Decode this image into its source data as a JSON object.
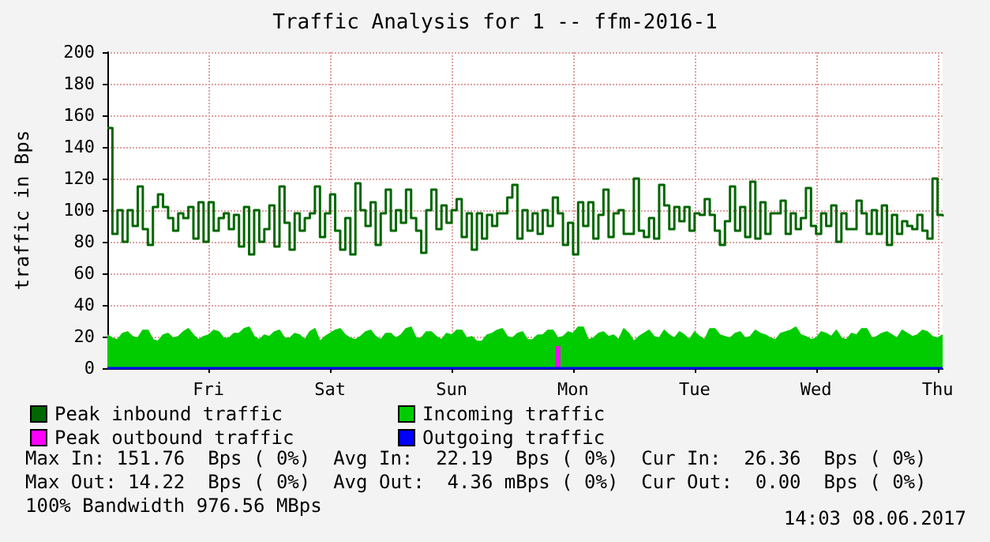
{
  "chart_data": {
    "type": "area",
    "title": "Traffic Analysis for 1 -- ffm-2016-1",
    "ylabel": "traffic in Bps",
    "categories": [
      null,
      null,
      null,
      null,
      null,
      null,
      null,
      null,
      null,
      null,
      null,
      null,
      null,
      null,
      null,
      null,
      null,
      null,
      null,
      null,
      "Fri",
      null,
      null,
      null,
      null,
      null,
      null,
      null,
      null,
      null,
      null,
      null,
      null,
      null,
      null,
      null,
      null,
      null,
      null,
      null,
      null,
      null,
      null,
      null,
      "Sat",
      null,
      null,
      null,
      null,
      null,
      null,
      null,
      null,
      null,
      null,
      null,
      null,
      null,
      null,
      null,
      null,
      null,
      null,
      null,
      null,
      null,
      null,
      null,
      "Sun",
      null,
      null,
      null,
      null,
      null,
      null,
      null,
      null,
      null,
      null,
      null,
      null,
      null,
      null,
      null,
      null,
      null,
      null,
      null,
      null,
      null,
      null,
      null,
      "Mon",
      null,
      null,
      null,
      null,
      null,
      null,
      null,
      null,
      null,
      null,
      null,
      null,
      null,
      null,
      null,
      null,
      null,
      null,
      null,
      null,
      null,
      null,
      null,
      "Tue",
      null,
      null,
      null,
      null,
      null,
      null,
      null,
      null,
      null,
      null,
      null,
      null,
      null,
      null,
      null,
      null,
      null,
      null,
      null,
      null,
      null,
      null,
      null,
      "Wed",
      null,
      null,
      null,
      null,
      null,
      null,
      null,
      null,
      null,
      null,
      null,
      null,
      null,
      null,
      null,
      null,
      null,
      null,
      null,
      null,
      null,
      null,
      null,
      "Thu",
      null
    ],
    "ylim": [
      0,
      200
    ],
    "yticks": [
      0,
      20,
      40,
      60,
      80,
      100,
      120,
      140,
      160,
      180,
      200
    ],
    "grid": true,
    "legend": "bottom",
    "series": [
      {
        "name": "Peak inbound traffic",
        "type": "step",
        "color": "#006600",
        "values": [
          152,
          85,
          100,
          80,
          100,
          90,
          115,
          88,
          78,
          102,
          110,
          102,
          95,
          87,
          98,
          95,
          102,
          82,
          105,
          80,
          105,
          87,
          95,
          98,
          88,
          97,
          77,
          102,
          72,
          100,
          80,
          88,
          103,
          77,
          115,
          92,
          75,
          98,
          87,
          95,
          98,
          115,
          83,
          98,
          110,
          87,
          75,
          95,
          72,
          117,
          100,
          90,
          105,
          78,
          98,
          113,
          87,
          100,
          92,
          113,
          95,
          87,
          73,
          100,
          113,
          88,
          103,
          92,
          100,
          107,
          83,
          98,
          75,
          98,
          82,
          97,
          90,
          98,
          98,
          108,
          116,
          82,
          100,
          87,
          98,
          85,
          100,
          90,
          108,
          98,
          78,
          92,
          72,
          105,
          90,
          105,
          82,
          97,
          113,
          83,
          98,
          100,
          85,
          85,
          120,
          87,
          83,
          95,
          82,
          116,
          103,
          88,
          102,
          93,
          102,
          87,
          98,
          97,
          107,
          97,
          87,
          78,
          93,
          115,
          87,
          102,
          83,
          118,
          82,
          105,
          85,
          98,
          98,
          106,
          85,
          98,
          88,
          95,
          114,
          90,
          85,
          98,
          90,
          103,
          80,
          98,
          88,
          88,
          106,
          98,
          85,
          100,
          85,
          103,
          78,
          97,
          85,
          93,
          90,
          88,
          97,
          87,
          82,
          120,
          97,
          96
        ]
      },
      {
        "name": "Incoming traffic",
        "color": "#00cc00",
        "values": [
          21,
          19,
          18,
          22,
          23,
          20,
          19,
          24,
          24,
          18,
          17,
          21,
          22,
          19,
          20,
          23,
          25,
          21,
          18,
          20,
          21,
          24,
          23,
          19,
          19,
          22,
          22,
          25,
          26,
          20,
          18,
          21,
          20,
          23,
          24,
          19,
          19,
          22,
          21,
          18,
          23,
          25,
          17,
          20,
          22,
          24,
          25,
          21,
          19,
          18,
          20,
          23,
          24,
          20,
          18,
          22,
          22,
          19,
          21,
          25,
          26,
          19,
          19,
          23,
          23,
          20,
          18,
          22,
          21,
          24,
          24,
          19,
          20,
          17,
          17,
          21,
          22,
          24,
          25,
          20,
          19,
          22,
          23,
          18,
          18,
          21,
          21,
          24,
          24,
          19,
          20,
          23,
          22,
          26,
          26,
          18,
          19,
          22,
          23,
          20,
          21,
          18,
          25,
          22,
          17,
          20,
          22,
          24,
          20,
          19,
          24,
          21,
          19,
          23,
          21,
          18,
          23,
          20,
          18,
          25,
          25,
          21,
          20,
          19,
          22,
          23,
          19,
          20,
          24,
          22,
          21,
          19,
          18,
          22,
          23,
          24,
          26,
          21,
          20,
          18,
          19,
          23,
          22,
          20,
          24,
          19,
          18,
          22,
          21,
          25,
          25,
          19,
          20,
          22,
          23,
          21,
          19,
          24,
          22,
          20,
          21,
          24,
          23,
          20,
          19,
          21
        ]
      },
      {
        "name": "Peak outbound traffic",
        "type": "bar",
        "color": "#ff00ff",
        "values": [
          null,
          null,
          null,
          null,
          null,
          null,
          null,
          null,
          null,
          null,
          null,
          null,
          null,
          null,
          null,
          null,
          null,
          null,
          null,
          null,
          null,
          null,
          null,
          null,
          null,
          null,
          null,
          null,
          null,
          null,
          null,
          null,
          null,
          null,
          null,
          null,
          null,
          null,
          null,
          null,
          null,
          null,
          null,
          null,
          null,
          null,
          null,
          null,
          null,
          null,
          null,
          null,
          null,
          null,
          null,
          null,
          null,
          null,
          null,
          null,
          null,
          null,
          null,
          null,
          null,
          null,
          null,
          null,
          null,
          null,
          null,
          null,
          null,
          null,
          null,
          null,
          null,
          null,
          null,
          null,
          null,
          null,
          null,
          null,
          null,
          null,
          null,
          null,
          null,
          14,
          null,
          null,
          null,
          null,
          null,
          null,
          null,
          null,
          null,
          null,
          null,
          null,
          null,
          null,
          null,
          null,
          null,
          null,
          null,
          null,
          null,
          null,
          null,
          null,
          null,
          null,
          null,
          null,
          null,
          null,
          null,
          null,
          null,
          null,
          null,
          null,
          null,
          null,
          null,
          null,
          null,
          null,
          null,
          null,
          null,
          null,
          null,
          null,
          null,
          null,
          null,
          null,
          null,
          null,
          null,
          null,
          null,
          null,
          null,
          null,
          null,
          null,
          null,
          null,
          null,
          null,
          null,
          null,
          null,
          null,
          null,
          null,
          null,
          null,
          null,
          null
        ]
      },
      {
        "name": "Outgoing traffic",
        "type": "line",
        "color": "#0000ff",
        "values": [
          0,
          0,
          0,
          0,
          0,
          0,
          0,
          0,
          0,
          0,
          0,
          0,
          0,
          0,
          0,
          0,
          0,
          0,
          0,
          0,
          0,
          0,
          0,
          0,
          0,
          0,
          0,
          0,
          0,
          0,
          0,
          0,
          0,
          0,
          0,
          0,
          0,
          0,
          0,
          0,
          0,
          0,
          0,
          0,
          0,
          0,
          0,
          0,
          0,
          0,
          0,
          0,
          0,
          0,
          0,
          0,
          0,
          0,
          0,
          0,
          0,
          0,
          0,
          0,
          0,
          0,
          0,
          0,
          0,
          0,
          0,
          0,
          0,
          0,
          0,
          0,
          0,
          0,
          0,
          0,
          0,
          0,
          0,
          0,
          0,
          0,
          0,
          0,
          0,
          0,
          0,
          0,
          0,
          0,
          0,
          0,
          0,
          0,
          0,
          0,
          0,
          0,
          0,
          0,
          0,
          0,
          0,
          0,
          0,
          0,
          0,
          0,
          0,
          0,
          0,
          0,
          0,
          0,
          0,
          0,
          0,
          0,
          0,
          0,
          0,
          0,
          0,
          0,
          0,
          0,
          0,
          0,
          0,
          0,
          0,
          0,
          0,
          0,
          0,
          0,
          0,
          0,
          0,
          0,
          0,
          0,
          0,
          0,
          0,
          0,
          0,
          0,
          0,
          0,
          0,
          0,
          0,
          0,
          0,
          0,
          0,
          0,
          0,
          0,
          0,
          0
        ]
      }
    ],
    "annotations": [
      "Max In: 151.76  Bps ( 0%)  Avg In:  22.19  Bps ( 0%)  Cur In:  26.36  Bps ( 0%)",
      "Max Out: 14.22  Bps ( 0%)  Avg Out:  4.36 mBps ( 0%)  Cur Out:  0.00  Bps ( 0%)",
      "100% Bandwidth 976.56 MBps",
      "14:03 08.06.2017"
    ]
  }
}
